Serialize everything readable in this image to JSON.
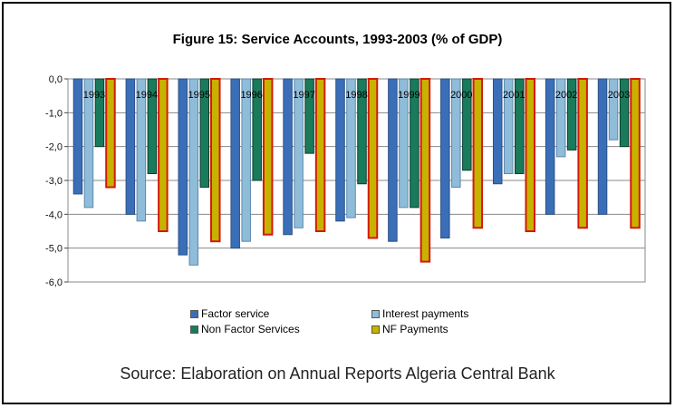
{
  "chart_data": {
    "type": "bar",
    "title": "Figure 15: Service Accounts, 1993-2003 (% of GDP)",
    "categories": [
      "1993",
      "1994",
      "1995",
      "1996",
      "1997",
      "1998",
      "1999",
      "2000",
      "2001",
      "2002",
      "2003"
    ],
    "series": [
      {
        "name": "Factor service",
        "color": "#3a6fb8",
        "values": [
          -3.4,
          -4.0,
          -5.2,
          -5.0,
          -4.6,
          -4.2,
          -4.8,
          -4.7,
          -3.1,
          -4.0,
          -4.0
        ]
      },
      {
        "name": "Interest payments",
        "color": "#8fbcd9",
        "values": [
          -3.8,
          -4.2,
          -5.5,
          -4.8,
          -4.4,
          -4.1,
          -3.8,
          -3.2,
          -2.8,
          -2.3,
          -1.8
        ]
      },
      {
        "name": "Non Factor Services",
        "color": "#1a7a5c",
        "values": [
          -2.0,
          -2.8,
          -3.2,
          -3.0,
          -2.2,
          -3.1,
          -3.8,
          -2.7,
          -2.8,
          -2.1,
          -2.0
        ]
      },
      {
        "name": "NF Payments",
        "color": "#c8b200",
        "values": [
          -3.2,
          -4.5,
          -4.8,
          -4.6,
          -4.5,
          -4.7,
          -5.4,
          -4.4,
          -4.5,
          -4.4,
          -4.4
        ]
      }
    ],
    "yticks": [
      "0,0",
      "-1,0",
      "-2,0",
      "-3,0",
      "-4,0",
      "-5,0",
      "-6,0"
    ],
    "ylim": [
      -6,
      0
    ],
    "grid": true,
    "legend_position": "bottom",
    "source": "Source: Elaboration on Annual Reports Algeria Central Bank"
  }
}
